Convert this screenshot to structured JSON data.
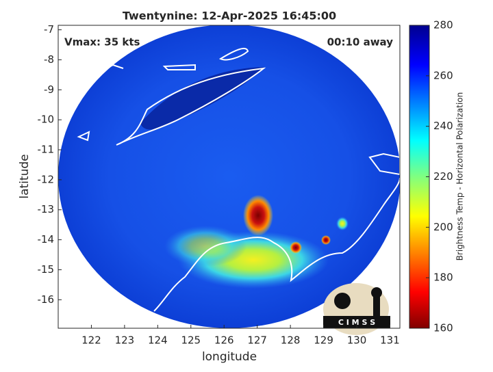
{
  "chart_data": {
    "type": "map",
    "title": "Twentynine: 12-Apr-2025 16:45:00",
    "annotations": {
      "left": "Vmax: 35 kts",
      "right": "00:10 away"
    },
    "xlabel": "longitude",
    "ylabel": "latitude",
    "xlim": [
      121,
      131.3
    ],
    "xticks": [
      122,
      123,
      124,
      125,
      126,
      127,
      128,
      129,
      130,
      131
    ],
    "ylim": [
      -16.95,
      -6.85
    ],
    "yticks": [
      -16,
      -15,
      -14,
      -13,
      -12,
      -11,
      -10,
      -9,
      -8,
      -7
    ],
    "colorbar": {
      "label": "Brightness Temp - Horizontal Polarization",
      "clim": [
        160,
        280
      ],
      "ticks": [
        160,
        180,
        200,
        220,
        240,
        260,
        280
      ]
    },
    "logo": "C I M S S"
  }
}
